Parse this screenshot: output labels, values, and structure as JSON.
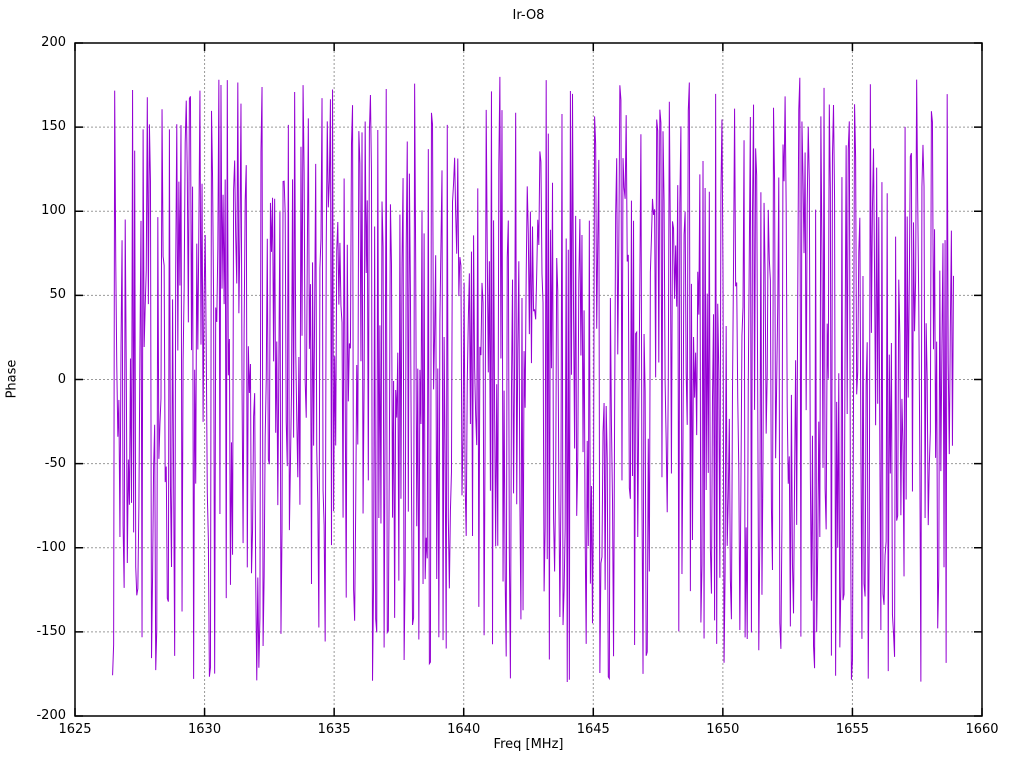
{
  "chart_data": {
    "type": "line",
    "title": "Ir-O8",
    "xlabel": "Freq [MHz]",
    "ylabel": "Phase",
    "xlim": [
      1625,
      1660
    ],
    "ylim": [
      -200,
      200
    ],
    "x_ticks": [
      1625,
      1630,
      1635,
      1640,
      1645,
      1650,
      1655,
      1660
    ],
    "y_ticks": [
      -200,
      -150,
      -100,
      -50,
      0,
      50,
      100,
      150,
      200
    ],
    "grid": true,
    "grid_style": "dotted",
    "grid_color": "#9a9a9a",
    "border_color": "#000000",
    "legend_position": "none",
    "line_color": "#9400d3",
    "series": [
      {
        "name": "phase",
        "description": "wrapped phase noise, uniformly distributed, connected line",
        "x_start": 1626.45,
        "x_end": 1658.9,
        "n_points": 800,
        "y_min": -180,
        "y_max": 180,
        "prng_seed": 7
      }
    ]
  }
}
